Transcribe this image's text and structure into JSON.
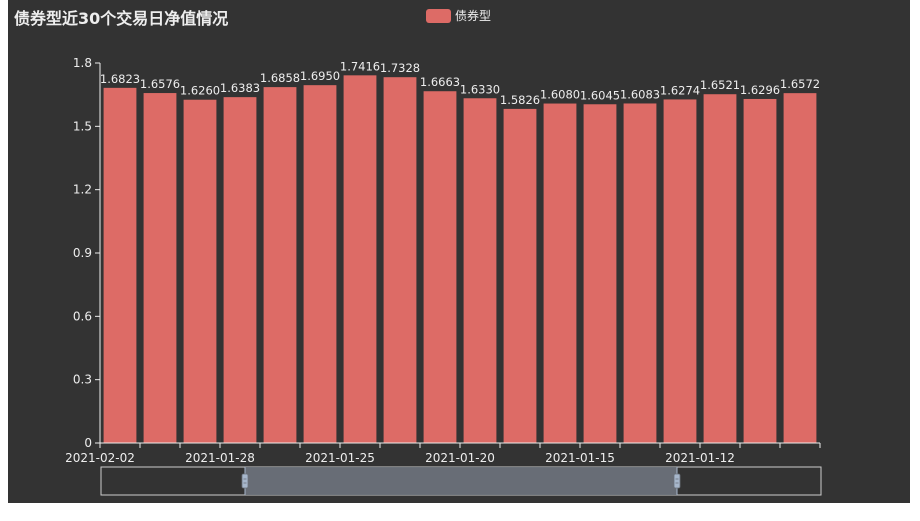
{
  "chart_data": {
    "type": "bar",
    "title": "债券型近30个交易日净值情况",
    "legend": [
      "债券型"
    ],
    "legend_position": "top-center",
    "series": [
      {
        "name": "债券型",
        "color": "#dd6b66",
        "values": [
          1.6823,
          1.6576,
          1.626,
          1.6383,
          1.6858,
          1.695,
          1.7416,
          1.7328,
          1.6663,
          1.633,
          1.5826,
          1.608,
          1.6045,
          1.6083,
          1.6274,
          1.6521,
          1.6296,
          1.6572
        ],
        "labels": [
          "1.6823",
          "1.6576",
          "1.6260",
          "1.6383",
          "1.6858",
          "1.6950",
          "1.7416",
          "1.7328",
          "1.6663",
          "1.6330",
          "1.5826",
          "1.6080",
          "1.6045",
          "1.6083",
          "1.6274",
          "1.6521",
          "1.6296",
          "1.6572"
        ]
      }
    ],
    "x_tick_labels": [
      "2021-02-02",
      "2021-01-28",
      "2021-01-25",
      "2021-01-20",
      "2021-01-15",
      "2021-01-12"
    ],
    "x_tick_category_index": [
      0,
      3,
      6,
      9,
      12,
      15
    ],
    "ylim": [
      0,
      1.8
    ],
    "yticks": [
      "0",
      "0.3",
      "0.6",
      "0.9",
      "1.2",
      "1.5",
      "1.8"
    ],
    "grid": false,
    "background": "#333333",
    "datazoom": {
      "start_percent": 20,
      "end_percent": 80,
      "fill_color": "#6b717a",
      "border_color": "#cccccc"
    }
  }
}
